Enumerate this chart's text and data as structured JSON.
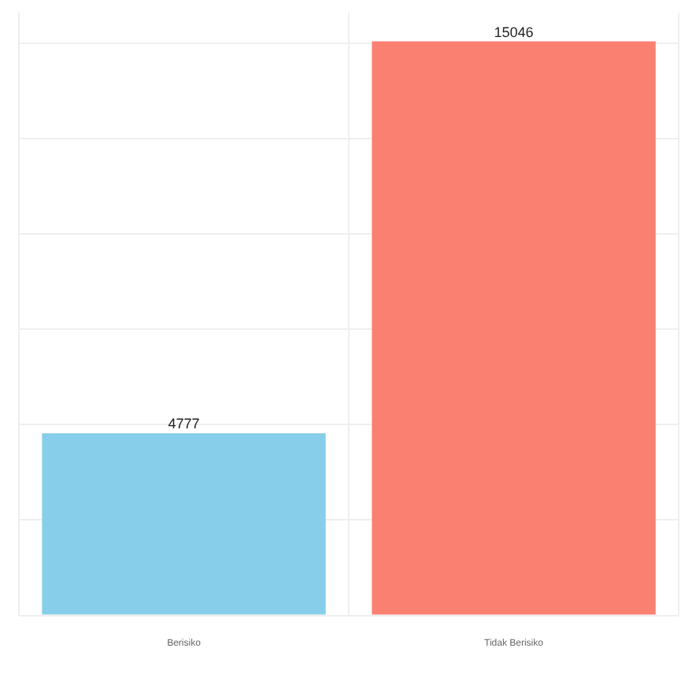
{
  "chart_data": {
    "type": "bar",
    "categories": [
      "Berisiko",
      "Tidak Berisiko"
    ],
    "values": [
      4777,
      15046
    ],
    "colors": [
      "#87ceeb",
      "#fa8072"
    ],
    "ylim": [
      0,
      15800
    ],
    "yticks": [
      {
        "value": 0,
        "label": null
      },
      {
        "value": 2500,
        "label": null
      },
      {
        "value": 5000,
        "label": null
      },
      {
        "value": 7500,
        "label": null
      },
      {
        "value": 10000,
        "label": null
      },
      {
        "value": 12500,
        "label": null
      },
      {
        "value": 15000,
        "label": null
      }
    ],
    "grid": true,
    "tick_labels": "x",
    "data_labels": true,
    "legend": false
  }
}
